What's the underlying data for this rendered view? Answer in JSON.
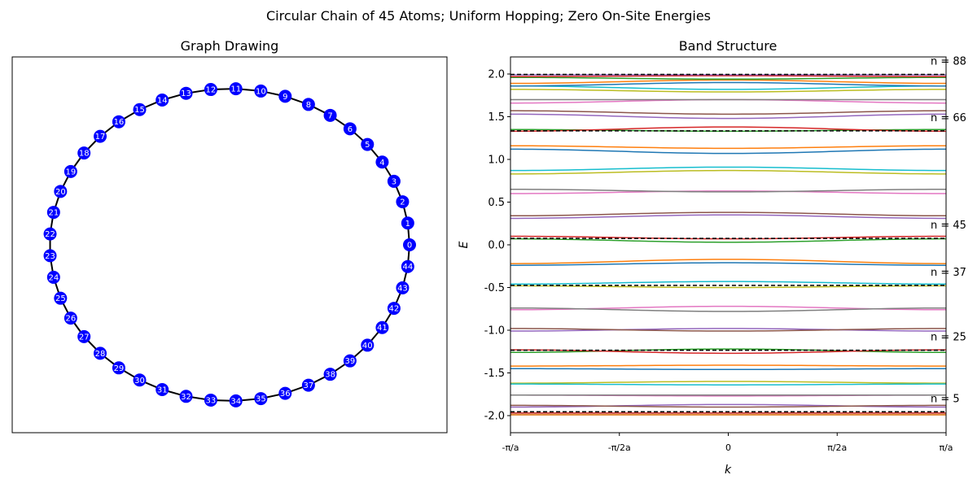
{
  "suptitle": "Circular Chain of 45 Atoms; Uniform Hopping; Zero On-Site Energies",
  "colors": {
    "node_fill": "#0000ff",
    "node_label": "#ffffff",
    "edge": "#000000",
    "dashed_level": "#000000",
    "band_cycle": [
      "#1f77b4",
      "#ff7f0e",
      "#2ca02c",
      "#d62728",
      "#9467bd",
      "#8c564b",
      "#e377c2",
      "#7f7f7f",
      "#bcbd22",
      "#17becf"
    ]
  },
  "chart_data": [
    {
      "type": "network",
      "title": "Graph Drawing",
      "layout": "circle",
      "nodes": [
        "0",
        "1",
        "2",
        "3",
        "4",
        "5",
        "6",
        "7",
        "8",
        "9",
        "10",
        "11",
        "12",
        "13",
        "14",
        "15",
        "16",
        "17",
        "18",
        "19",
        "20",
        "21",
        "22",
        "23",
        "24",
        "25",
        "26",
        "27",
        "28",
        "29",
        "30",
        "31",
        "32",
        "33",
        "34",
        "35",
        "36",
        "37",
        "38",
        "39",
        "40",
        "41",
        "42",
        "43",
        "44"
      ],
      "edges": "ring: i connected to i+1 (mod 45)"
    },
    {
      "type": "line",
      "title": "Band Structure",
      "xlabel": "k",
      "ylabel": "E",
      "xlim": [
        -3.1416,
        3.1416
      ],
      "ylim": [
        -2.2,
        2.2
      ],
      "xticks": [
        "-π/a",
        "-π/2a",
        "0",
        "π/2a",
        "π/a"
      ],
      "yticks": [
        -2.0,
        -1.5,
        -1.0,
        -0.5,
        0.0,
        0.5,
        1.0,
        1.5,
        2.0
      ],
      "series": [
        {
          "values": [
            -1.99,
            -1.99
          ]
        },
        {
          "values": [
            -1.99,
            -1.99
          ]
        },
        {
          "values": [
            -1.97,
            -1.97
          ]
        },
        {
          "values": [
            -1.97,
            -1.97
          ]
        },
        {
          "values": [
            -1.9,
            -1.87
          ]
        },
        {
          "values": [
            -1.88,
            -1.9
          ]
        },
        {
          "values": [
            -1.76,
            -1.77
          ]
        },
        {
          "values": [
            -1.76,
            -1.76
          ]
        },
        {
          "values": [
            -1.62,
            -1.6
          ]
        },
        {
          "values": [
            -1.63,
            -1.64
          ]
        },
        {
          "values": [
            -1.45,
            -1.46
          ]
        },
        {
          "values": [
            -1.42,
            -1.41
          ]
        },
        {
          "values": [
            -1.26,
            -1.22
          ]
        },
        {
          "values": [
            -1.23,
            -1.27
          ]
        },
        {
          "values": [
            -1.01,
            -0.98
          ]
        },
        {
          "values": [
            -0.98,
            -1.01
          ]
        },
        {
          "values": [
            -0.76,
            -0.72
          ]
        },
        {
          "values": [
            -0.74,
            -0.78
          ]
        },
        {
          "values": [
            -0.48,
            -0.5
          ]
        },
        {
          "values": [
            -0.46,
            -0.43
          ]
        },
        {
          "values": [
            -0.24,
            -0.21
          ]
        },
        {
          "values": [
            -0.22,
            -0.17
          ]
        },
        {
          "values": [
            0.07,
            0.03
          ]
        },
        {
          "values": [
            0.1,
            0.07
          ]
        },
        {
          "values": [
            0.31,
            0.35
          ]
        },
        {
          "values": [
            0.34,
            0.38
          ]
        },
        {
          "values": [
            0.6,
            0.63
          ]
        },
        {
          "values": [
            0.65,
            0.62
          ]
        },
        {
          "values": [
            0.83,
            0.87
          ]
        },
        {
          "values": [
            0.87,
            0.91
          ]
        },
        {
          "values": [
            1.12,
            1.07
          ]
        },
        {
          "values": [
            1.16,
            1.13
          ]
        },
        {
          "values": [
            1.35,
            1.33
          ]
        },
        {
          "values": [
            1.33,
            1.38
          ]
        },
        {
          "values": [
            1.53,
            1.48
          ]
        },
        {
          "values": [
            1.57,
            1.53
          ]
        },
        {
          "values": [
            1.66,
            1.7
          ]
        },
        {
          "values": [
            1.7,
            1.7
          ]
        },
        {
          "values": [
            1.82,
            1.79
          ]
        },
        {
          "values": [
            1.86,
            1.82
          ]
        },
        {
          "values": [
            1.86,
            1.9
          ]
        },
        {
          "values": [
            1.89,
            1.93
          ]
        },
        {
          "values": [
            1.96,
            1.94
          ]
        },
        {
          "values": [
            1.97,
            1.98
          ]
        },
        {
          "values": [
            1.99,
            1.99
          ]
        }
      ],
      "reference_levels": [
        {
          "y": -1.955,
          "label": "n = 5"
        },
        {
          "y": -1.235,
          "label": "n = 25"
        },
        {
          "y": -0.475,
          "label": "n = 37"
        },
        {
          "y": 0.075,
          "label": "n = 45"
        },
        {
          "y": 1.335,
          "label": "n = 66"
        },
        {
          "y": 1.995,
          "label": "n = 88"
        }
      ]
    }
  ]
}
